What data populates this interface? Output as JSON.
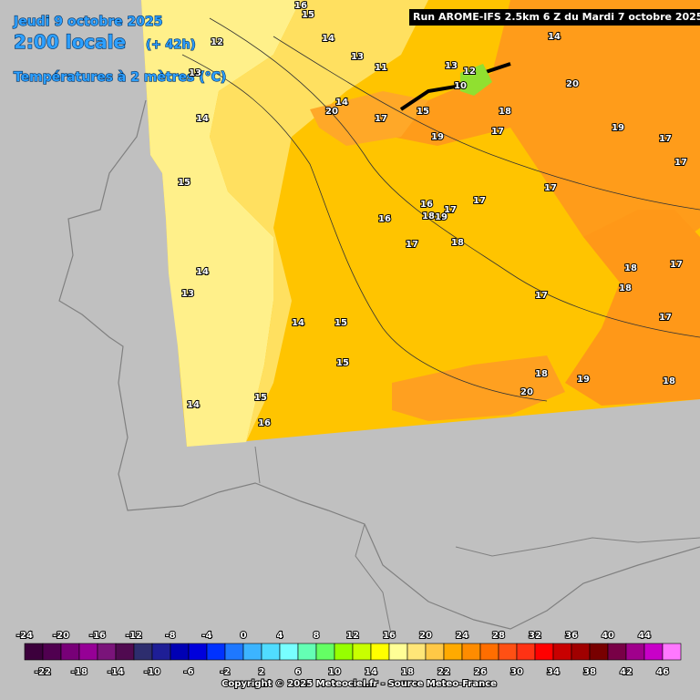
{
  "header": {
    "date": "Jeudi 9 octobre 2025",
    "time": "2:00 locale",
    "lead": "(+ 42h)",
    "field": "Températures à 2 mètres (°C)",
    "run": "Run AROME-IFS 2.5km 6 Z du Mardi 7 octobre 2025"
  },
  "map": {
    "contour_labels": [
      16,
      15,
      14,
      12,
      13,
      11,
      13,
      12,
      10,
      14,
      20,
      14,
      20,
      17,
      15,
      18,
      19,
      17,
      19,
      17,
      17,
      17,
      16,
      18,
      19,
      17,
      17,
      16,
      17,
      18,
      14,
      13,
      17,
      18,
      18,
      17,
      17,
      14,
      15,
      15,
      18,
      19,
      20,
      18,
      14,
      15,
      16,
      13,
      14,
      15
    ]
  },
  "scale": {
    "values": [
      -24,
      -22,
      -20,
      -18,
      -16,
      -14,
      -12,
      -10,
      -8,
      -6,
      -4,
      -2,
      0,
      2,
      4,
      6,
      8,
      10,
      12,
      14,
      16,
      18,
      20,
      22,
      24,
      26,
      28,
      30,
      32,
      34,
      36,
      38,
      40,
      42,
      44,
      46
    ],
    "colors": [
      "#3c003c",
      "#500050",
      "#780078",
      "#960096",
      "#7a147a",
      "#500a50",
      "#2d2d6e",
      "#1e1e96",
      "#0000b4",
      "#0000dc",
      "#0032ff",
      "#1e78ff",
      "#3cb4ff",
      "#50dcff",
      "#78ffff",
      "#64ffb4",
      "#64ff64",
      "#96ff00",
      "#c8ff00",
      "#ffff00",
      "#ffff96",
      "#ffe678",
      "#ffc846",
      "#ffaa00",
      "#ff8c00",
      "#ff6e00",
      "#ff5014",
      "#ff3214",
      "#ff0000",
      "#c80000",
      "#a00000",
      "#780000",
      "#780046",
      "#a0008c",
      "#c800c8",
      "#ff78ff"
    ]
  },
  "footer": {
    "copyright": "Copyright © 2025 Meteociel.fr - Source Meteo-France"
  }
}
